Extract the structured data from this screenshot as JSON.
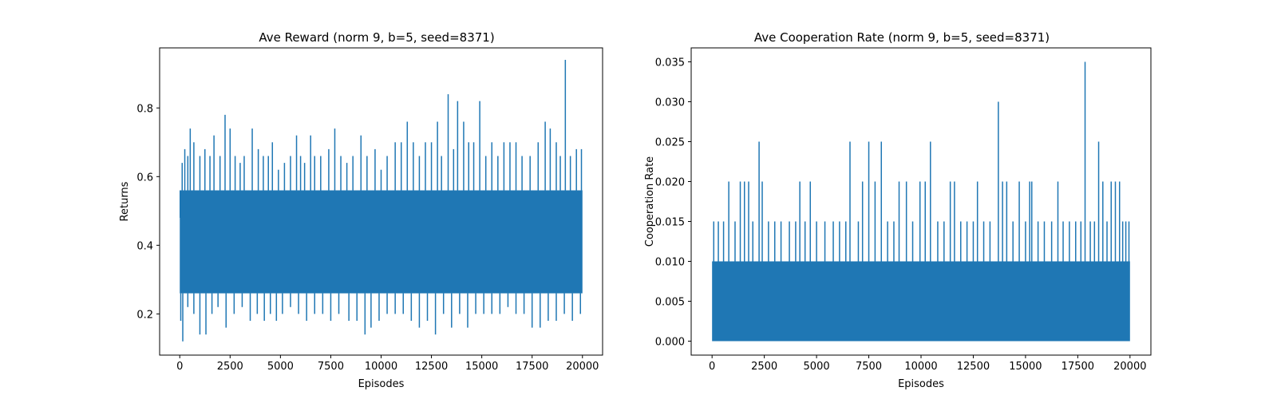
{
  "chart_data": [
    {
      "type": "line",
      "title": "Ave Reward (norm 9, b=5, seed=8371)",
      "xlabel": "Episodes",
      "ylabel": "Returns",
      "xlim": [
        -1000,
        21000
      ],
      "ylim": [
        0.08,
        0.975
      ],
      "xticks": [
        0,
        2500,
        5000,
        7500,
        10000,
        12500,
        15000,
        17500,
        20000
      ],
      "xtick_labels": [
        "0",
        "2500",
        "5000",
        "7500",
        "10000",
        "12500",
        "15000",
        "17500",
        "20000"
      ],
      "yticks": [
        0.2,
        0.4,
        0.6,
        0.8
      ],
      "ytick_labels": [
        "0.2",
        "0.4",
        "0.6",
        "0.8"
      ],
      "grid": false,
      "series": [
        {
          "color": "#1f77b4",
          "band": {
            "x_range": [
              0,
              20000
            ],
            "lower": 0.26,
            "upper": 0.56
          },
          "spikes_up": [
            {
              "x": 20,
              "y": 0.48
            },
            {
              "x": 120,
              "y": 0.64
            },
            {
              "x": 250,
              "y": 0.68
            },
            {
              "x": 400,
              "y": 0.66
            },
            {
              "x": 520,
              "y": 0.74
            },
            {
              "x": 700,
              "y": 0.7
            },
            {
              "x": 1000,
              "y": 0.66
            },
            {
              "x": 1250,
              "y": 0.68
            },
            {
              "x": 1500,
              "y": 0.66
            },
            {
              "x": 1700,
              "y": 0.72
            },
            {
              "x": 2000,
              "y": 0.66
            },
            {
              "x": 2250,
              "y": 0.78
            },
            {
              "x": 2500,
              "y": 0.74
            },
            {
              "x": 2750,
              "y": 0.66
            },
            {
              "x": 3000,
              "y": 0.64
            },
            {
              "x": 3200,
              "y": 0.66
            },
            {
              "x": 3600,
              "y": 0.74
            },
            {
              "x": 3900,
              "y": 0.68
            },
            {
              "x": 4150,
              "y": 0.66
            },
            {
              "x": 4400,
              "y": 0.66
            },
            {
              "x": 4600,
              "y": 0.7
            },
            {
              "x": 4900,
              "y": 0.62
            },
            {
              "x": 5200,
              "y": 0.64
            },
            {
              "x": 5500,
              "y": 0.66
            },
            {
              "x": 5800,
              "y": 0.72
            },
            {
              "x": 6000,
              "y": 0.66
            },
            {
              "x": 6200,
              "y": 0.64
            },
            {
              "x": 6500,
              "y": 0.72
            },
            {
              "x": 6700,
              "y": 0.66
            },
            {
              "x": 7000,
              "y": 0.66
            },
            {
              "x": 7400,
              "y": 0.68
            },
            {
              "x": 7700,
              "y": 0.74
            },
            {
              "x": 8000,
              "y": 0.66
            },
            {
              "x": 8300,
              "y": 0.64
            },
            {
              "x": 8600,
              "y": 0.66
            },
            {
              "x": 9000,
              "y": 0.72
            },
            {
              "x": 9300,
              "y": 0.66
            },
            {
              "x": 9700,
              "y": 0.68
            },
            {
              "x": 10000,
              "y": 0.62
            },
            {
              "x": 10300,
              "y": 0.66
            },
            {
              "x": 10700,
              "y": 0.7
            },
            {
              "x": 11000,
              "y": 0.7
            },
            {
              "x": 11300,
              "y": 0.76
            },
            {
              "x": 11600,
              "y": 0.7
            },
            {
              "x": 11900,
              "y": 0.66
            },
            {
              "x": 12200,
              "y": 0.7
            },
            {
              "x": 12500,
              "y": 0.7
            },
            {
              "x": 12800,
              "y": 0.76
            },
            {
              "x": 13000,
              "y": 0.66
            },
            {
              "x": 13330,
              "y": 0.84
            },
            {
              "x": 13600,
              "y": 0.68
            },
            {
              "x": 13800,
              "y": 0.82
            },
            {
              "x": 14100,
              "y": 0.76
            },
            {
              "x": 14350,
              "y": 0.7
            },
            {
              "x": 14600,
              "y": 0.7
            },
            {
              "x": 14900,
              "y": 0.82
            },
            {
              "x": 15200,
              "y": 0.66
            },
            {
              "x": 15500,
              "y": 0.7
            },
            {
              "x": 15800,
              "y": 0.66
            },
            {
              "x": 16100,
              "y": 0.7
            },
            {
              "x": 16400,
              "y": 0.7
            },
            {
              "x": 16700,
              "y": 0.7
            },
            {
              "x": 17000,
              "y": 0.66
            },
            {
              "x": 17400,
              "y": 0.66
            },
            {
              "x": 17800,
              "y": 0.7
            },
            {
              "x": 18150,
              "y": 0.76
            },
            {
              "x": 18400,
              "y": 0.74
            },
            {
              "x": 18700,
              "y": 0.7
            },
            {
              "x": 18900,
              "y": 0.66
            },
            {
              "x": 19150,
              "y": 0.94
            },
            {
              "x": 19400,
              "y": 0.66
            },
            {
              "x": 19700,
              "y": 0.68
            },
            {
              "x": 19950,
              "y": 0.68
            }
          ],
          "spikes_down": [
            {
              "x": 50,
              "y": 0.18
            },
            {
              "x": 150,
              "y": 0.12
            },
            {
              "x": 400,
              "y": 0.22
            },
            {
              "x": 700,
              "y": 0.2
            },
            {
              "x": 1000,
              "y": 0.14
            },
            {
              "x": 1300,
              "y": 0.14
            },
            {
              "x": 1600,
              "y": 0.2
            },
            {
              "x": 1900,
              "y": 0.22
            },
            {
              "x": 2300,
              "y": 0.16
            },
            {
              "x": 2700,
              "y": 0.2
            },
            {
              "x": 3100,
              "y": 0.22
            },
            {
              "x": 3500,
              "y": 0.18
            },
            {
              "x": 3850,
              "y": 0.2
            },
            {
              "x": 4200,
              "y": 0.18
            },
            {
              "x": 4500,
              "y": 0.2
            },
            {
              "x": 4800,
              "y": 0.18
            },
            {
              "x": 5100,
              "y": 0.2
            },
            {
              "x": 5500,
              "y": 0.22
            },
            {
              "x": 5900,
              "y": 0.2
            },
            {
              "x": 6300,
              "y": 0.18
            },
            {
              "x": 6700,
              "y": 0.2
            },
            {
              "x": 7100,
              "y": 0.2
            },
            {
              "x": 7500,
              "y": 0.18
            },
            {
              "x": 7900,
              "y": 0.2
            },
            {
              "x": 8400,
              "y": 0.18
            },
            {
              "x": 8800,
              "y": 0.18
            },
            {
              "x": 9200,
              "y": 0.14
            },
            {
              "x": 9500,
              "y": 0.16
            },
            {
              "x": 9900,
              "y": 0.18
            },
            {
              "x": 10300,
              "y": 0.2
            },
            {
              "x": 10700,
              "y": 0.2
            },
            {
              "x": 11100,
              "y": 0.2
            },
            {
              "x": 11500,
              "y": 0.18
            },
            {
              "x": 11900,
              "y": 0.16
            },
            {
              "x": 12300,
              "y": 0.18
            },
            {
              "x": 12700,
              "y": 0.14
            },
            {
              "x": 13100,
              "y": 0.2
            },
            {
              "x": 13500,
              "y": 0.16
            },
            {
              "x": 13900,
              "y": 0.2
            },
            {
              "x": 14300,
              "y": 0.16
            },
            {
              "x": 14700,
              "y": 0.2
            },
            {
              "x": 15100,
              "y": 0.2
            },
            {
              "x": 15500,
              "y": 0.2
            },
            {
              "x": 15900,
              "y": 0.2
            },
            {
              "x": 16300,
              "y": 0.22
            },
            {
              "x": 16700,
              "y": 0.2
            },
            {
              "x": 17100,
              "y": 0.2
            },
            {
              "x": 17500,
              "y": 0.16
            },
            {
              "x": 17900,
              "y": 0.16
            },
            {
              "x": 18300,
              "y": 0.18
            },
            {
              "x": 18700,
              "y": 0.18
            },
            {
              "x": 19100,
              "y": 0.2
            },
            {
              "x": 19500,
              "y": 0.18
            },
            {
              "x": 19900,
              "y": 0.2
            }
          ]
        }
      ]
    },
    {
      "type": "line",
      "title": "Ave Cooperation Rate (norm 9, b=5, seed=8371)",
      "xlabel": "Episodes",
      "ylabel": "Cooperation Rate",
      "xlim": [
        -1000,
        21000
      ],
      "ylim": [
        -0.00175,
        0.03675
      ],
      "xticks": [
        0,
        2500,
        5000,
        7500,
        10000,
        12500,
        15000,
        17500,
        20000
      ],
      "xtick_labels": [
        "0",
        "2500",
        "5000",
        "7500",
        "10000",
        "12500",
        "15000",
        "17500",
        "20000"
      ],
      "yticks": [
        0.0,
        0.005,
        0.01,
        0.015,
        0.02,
        0.025,
        0.03,
        0.035
      ],
      "ytick_labels": [
        "0.000",
        "0.005",
        "0.010",
        "0.015",
        "0.020",
        "0.025",
        "0.030",
        "0.035"
      ],
      "grid": false,
      "series": [
        {
          "color": "#1f77b4",
          "band": {
            "x_range": [
              0,
              20000
            ],
            "lower": 0.0,
            "upper": 0.01
          },
          "spikes_up": [
            {
              "x": 80,
              "y": 0.015
            },
            {
              "x": 300,
              "y": 0.015
            },
            {
              "x": 550,
              "y": 0.015
            },
            {
              "x": 800,
              "y": 0.02
            },
            {
              "x": 1100,
              "y": 0.015
            },
            {
              "x": 1350,
              "y": 0.02
            },
            {
              "x": 1550,
              "y": 0.02
            },
            {
              "x": 1750,
              "y": 0.02
            },
            {
              "x": 1950,
              "y": 0.015
            },
            {
              "x": 2250,
              "y": 0.025
            },
            {
              "x": 2400,
              "y": 0.02
            },
            {
              "x": 2700,
              "y": 0.015
            },
            {
              "x": 3000,
              "y": 0.015
            },
            {
              "x": 3300,
              "y": 0.015
            },
            {
              "x": 3700,
              "y": 0.015
            },
            {
              "x": 4000,
              "y": 0.015
            },
            {
              "x": 4200,
              "y": 0.02
            },
            {
              "x": 4450,
              "y": 0.015
            },
            {
              "x": 4700,
              "y": 0.02
            },
            {
              "x": 5000,
              "y": 0.015
            },
            {
              "x": 5400,
              "y": 0.015
            },
            {
              "x": 5800,
              "y": 0.015
            },
            {
              "x": 6100,
              "y": 0.015
            },
            {
              "x": 6400,
              "y": 0.015
            },
            {
              "x": 6600,
              "y": 0.025
            },
            {
              "x": 7000,
              "y": 0.015
            },
            {
              "x": 7200,
              "y": 0.02
            },
            {
              "x": 7500,
              "y": 0.025
            },
            {
              "x": 7800,
              "y": 0.02
            },
            {
              "x": 8100,
              "y": 0.025
            },
            {
              "x": 8400,
              "y": 0.015
            },
            {
              "x": 8700,
              "y": 0.015
            },
            {
              "x": 8950,
              "y": 0.02
            },
            {
              "x": 9300,
              "y": 0.02
            },
            {
              "x": 9600,
              "y": 0.015
            },
            {
              "x": 9950,
              "y": 0.02
            },
            {
              "x": 10200,
              "y": 0.02
            },
            {
              "x": 10450,
              "y": 0.025
            },
            {
              "x": 10800,
              "y": 0.015
            },
            {
              "x": 11100,
              "y": 0.015
            },
            {
              "x": 11400,
              "y": 0.02
            },
            {
              "x": 11600,
              "y": 0.02
            },
            {
              "x": 11900,
              "y": 0.015
            },
            {
              "x": 12200,
              "y": 0.015
            },
            {
              "x": 12500,
              "y": 0.015
            },
            {
              "x": 12700,
              "y": 0.02
            },
            {
              "x": 13000,
              "y": 0.015
            },
            {
              "x": 13300,
              "y": 0.015
            },
            {
              "x": 13700,
              "y": 0.03
            },
            {
              "x": 13900,
              "y": 0.02
            },
            {
              "x": 14100,
              "y": 0.02
            },
            {
              "x": 14400,
              "y": 0.015
            },
            {
              "x": 14700,
              "y": 0.02
            },
            {
              "x": 15000,
              "y": 0.015
            },
            {
              "x": 15200,
              "y": 0.02
            },
            {
              "x": 15300,
              "y": 0.02
            },
            {
              "x": 15600,
              "y": 0.015
            },
            {
              "x": 15900,
              "y": 0.015
            },
            {
              "x": 16250,
              "y": 0.015
            },
            {
              "x": 16550,
              "y": 0.02
            },
            {
              "x": 16800,
              "y": 0.015
            },
            {
              "x": 17100,
              "y": 0.015
            },
            {
              "x": 17400,
              "y": 0.015
            },
            {
              "x": 17650,
              "y": 0.015
            },
            {
              "x": 17850,
              "y": 0.035
            },
            {
              "x": 18100,
              "y": 0.015
            },
            {
              "x": 18300,
              "y": 0.015
            },
            {
              "x": 18500,
              "y": 0.025
            },
            {
              "x": 18700,
              "y": 0.02
            },
            {
              "x": 18900,
              "y": 0.015
            },
            {
              "x": 19100,
              "y": 0.02
            },
            {
              "x": 19300,
              "y": 0.02
            },
            {
              "x": 19500,
              "y": 0.02
            },
            {
              "x": 19650,
              "y": 0.015
            },
            {
              "x": 19800,
              "y": 0.015
            },
            {
              "x": 19950,
              "y": 0.015
            }
          ],
          "spikes_down": []
        }
      ]
    }
  ]
}
